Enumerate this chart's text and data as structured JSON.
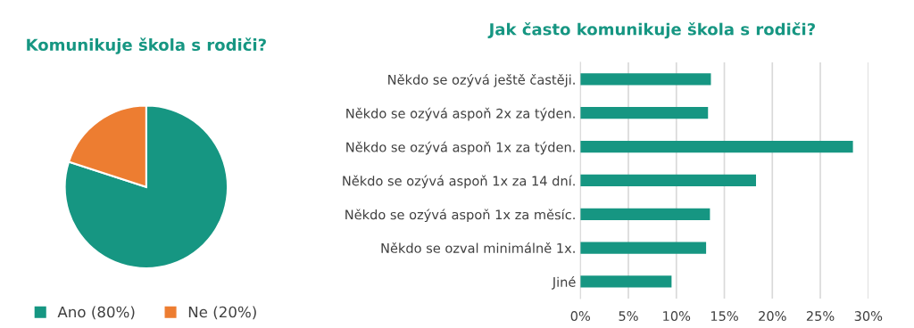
{
  "chart_data": [
    {
      "type": "pie",
      "title": "Komunikuje škola s rodiči?",
      "categories": [
        "Ano (80%)",
        "Ne (20%)"
      ],
      "values": [
        80,
        20
      ],
      "colors": [
        "#169682",
        "#ed7d31"
      ],
      "legend": "bottom"
    },
    {
      "type": "bar",
      "title": "Jak často komunikuje škola s rodiči?",
      "orientation": "horizontal",
      "categories": [
        "Někdo se ozývá ještě častěji.",
        "Někdo se ozývá aspoň 2x za týden.",
        "Někdo se ozývá aspoň 1x za týden.",
        "Někdo se ozývá aspoň 1x za 14 dní.",
        "Někdo se ozývá aspoň 1x za měsíc.",
        "Někdo se ozval minimálně 1x.",
        "Jiné"
      ],
      "values": [
        13.6,
        13.3,
        28.4,
        18.3,
        13.5,
        13.1,
        9.5
      ],
      "color": "#169682",
      "xlim": [
        0,
        30
      ],
      "xticks": [
        {
          "value": 0,
          "label": "0%"
        },
        {
          "value": 5,
          "label": "5%"
        },
        {
          "value": 10,
          "label": "10%"
        },
        {
          "value": 15,
          "label": "15%"
        },
        {
          "value": 20,
          "label": "20%"
        },
        {
          "value": 25,
          "label": "25%"
        },
        {
          "value": 30,
          "label": "30%"
        }
      ],
      "grid": "x",
      "legend": false
    }
  ]
}
